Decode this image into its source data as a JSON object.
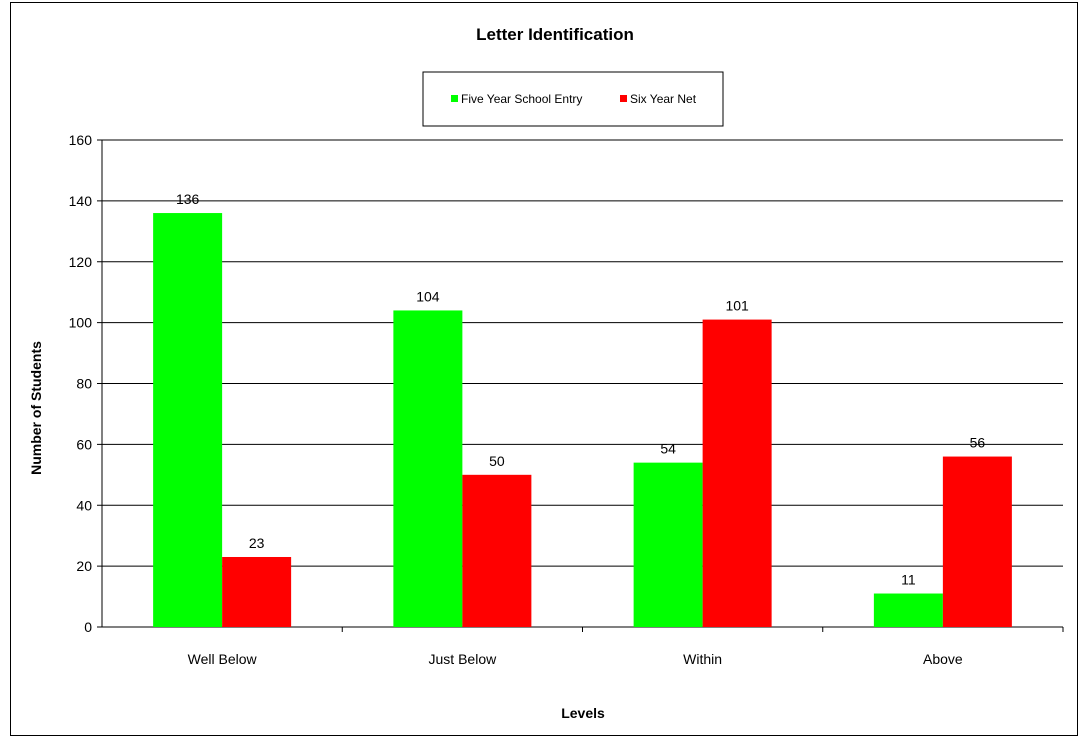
{
  "chart_data": {
    "type": "bar",
    "title": "Letter Identification",
    "xlabel": "Levels",
    "ylabel": "Number of Students",
    "categories": [
      "Well Below",
      "Just Below",
      "Within",
      "Above"
    ],
    "series": [
      {
        "name": "Five Year School Entry",
        "values": [
          136,
          104,
          54,
          11
        ],
        "color": "#00ff00"
      },
      {
        "name": "Six Year Net",
        "values": [
          23,
          50,
          101,
          56
        ],
        "color": "#ff0000"
      }
    ],
    "ylim": [
      0,
      160
    ],
    "yticks": [
      0,
      20,
      40,
      60,
      80,
      100,
      120,
      140,
      160
    ],
    "grid": true,
    "legend": "top-center"
  }
}
